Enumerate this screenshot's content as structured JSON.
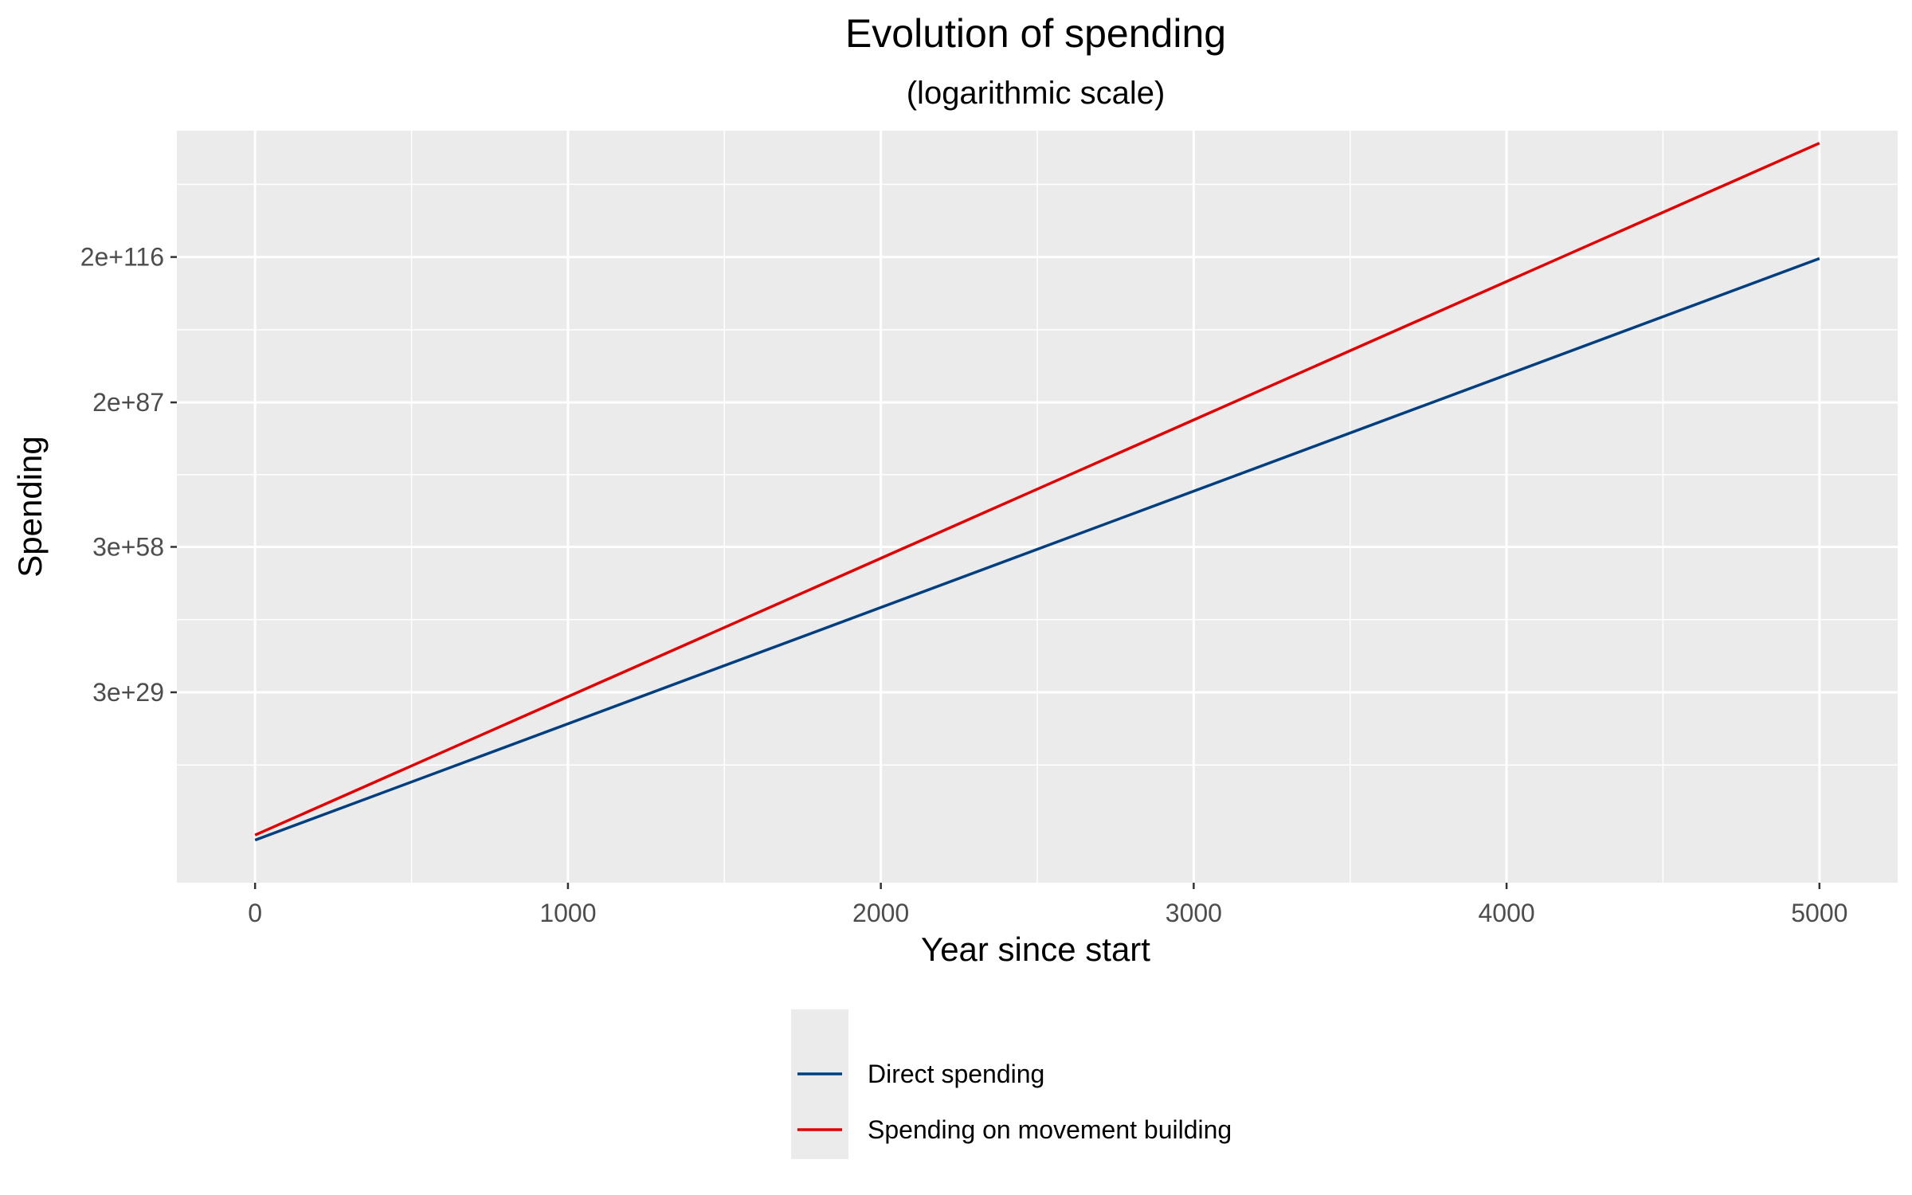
{
  "chart_data": {
    "type": "line",
    "title": "Evolution of spending",
    "subtitle": "(logarithmic scale)",
    "xlabel": "Year since start",
    "ylabel": "Spending",
    "y_scale": "log",
    "grid": true,
    "legend_position": "bottom",
    "xlim": [
      -250,
      5250
    ],
    "ylim_log10": [
      -8.5,
      141.5
    ],
    "x_ticks": [
      0,
      1000,
      2000,
      3000,
      4000,
      5000
    ],
    "x_tick_labels": [
      "0",
      "1000",
      "2000",
      "3000",
      "4000",
      "5000"
    ],
    "y_ticks_log10": [
      29.48,
      58.48,
      87.3,
      116.3
    ],
    "y_tick_labels": [
      "3e+29",
      "3e+58",
      "2e+87",
      "2e+116"
    ],
    "series": [
      {
        "name": "Direct spending",
        "color": "#003f7f",
        "x": [
          0,
          5000
        ],
        "y": [
          "1e+0",
          "1e+116"
        ]
      },
      {
        "name": "Spending on movement building",
        "color": "#e00000",
        "x": [
          0,
          5000
        ],
        "y": [
          "1e+1",
          "1e+139"
        ]
      }
    ]
  }
}
